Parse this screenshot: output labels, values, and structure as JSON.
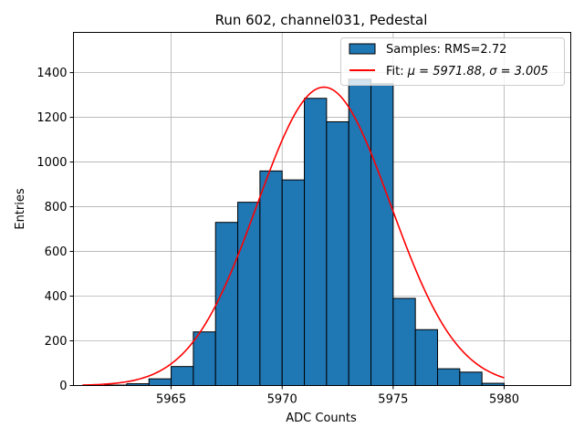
{
  "chart_data": {
    "type": "bar",
    "title": "Run 602, channel031, Pedestal",
    "xlabel": "ADC Counts",
    "ylabel": "Entries",
    "xlim": [
      5960.6,
      5983.0
    ],
    "ylim": [
      0,
      1580
    ],
    "xticks": [
      5965,
      5970,
      5975,
      5980
    ],
    "yticks": [
      0,
      200,
      400,
      600,
      800,
      1000,
      1200,
      1400
    ],
    "grid": true,
    "legend_position": "top-right",
    "histogram": {
      "name": "Samples: RMS=2.72",
      "color": "#1f77b4",
      "bin_edges": [
        5961,
        5962,
        5963,
        5964,
        5965,
        5966,
        5967,
        5968,
        5969,
        5970,
        5971,
        5972,
        5973,
        5974,
        5975,
        5976,
        5977,
        5978,
        5979,
        5980
      ],
      "counts": [
        0,
        2,
        8,
        30,
        85,
        240,
        730,
        820,
        960,
        920,
        1285,
        1180,
        1370,
        1350,
        390,
        250,
        75,
        60,
        10
      ]
    },
    "fit": {
      "name": "Fit: μ = 5971.88, σ = 3.005",
      "legend_prefix": "Fit: ",
      "legend_mu": "μ = 5971.88",
      "legend_sigma": "σ = 3.005",
      "legend_sep": ", ",
      "color": "#ff0000",
      "mu": 5971.88,
      "sigma": 3.005,
      "amplitude": 1335,
      "x_range": [
        5961,
        5980
      ]
    }
  }
}
